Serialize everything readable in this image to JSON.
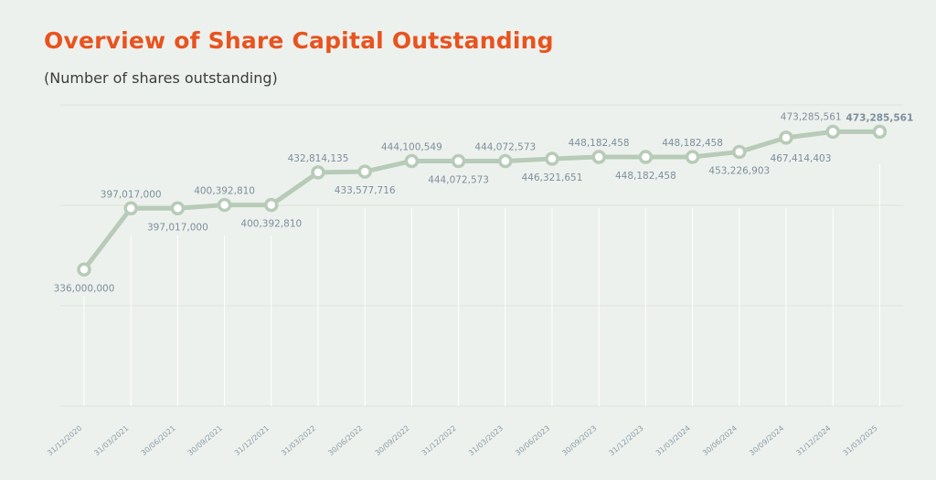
{
  "title": "Overview of Share Capital Outstanding",
  "subtitle": "(Number of shares outstanding)",
  "chart_data": {
    "type": "line",
    "title": "Overview of Share Capital Outstanding",
    "subtitle": "(Number of shares outstanding)",
    "xlabel": "",
    "ylabel": "",
    "ylim": [
      200000000,
      500000000
    ],
    "grid": true,
    "categories": [
      "31/12/2020",
      "31/03/2021",
      "30/06/2021",
      "30/09/2021",
      "31/12/2021",
      "31/03/2022",
      "30/06/2022",
      "30/09/2022",
      "31/12/2022",
      "31/03/2023",
      "30/06/2023",
      "30/09/2023",
      "31/12/2023",
      "31/03/2024",
      "30/06/2024",
      "30/09/2024",
      "31/12/2024",
      "31/03/2025"
    ],
    "values": [
      336000000,
      397017000,
      397017000,
      400392810,
      400392810,
      432814135,
      433577716,
      444100549,
      444072573,
      444072573,
      446321651,
      448182458,
      448182458,
      448182458,
      453226903,
      467414403,
      473285561,
      473285561
    ],
    "labels": [
      "336,000,000",
      "397,017,000",
      "397,017,000",
      "400,392,810",
      "400,392,810",
      "432,814,135",
      "433,577,716",
      "444,100,549",
      "444,072,573",
      "444,072,573",
      "446,321,651",
      "448,182,458",
      "448,182,458",
      "448,182,458",
      "453,226,903",
      "467,414,403",
      "473,285,561",
      "473,285,561"
    ],
    "line_color": "#b7cbb8"
  }
}
